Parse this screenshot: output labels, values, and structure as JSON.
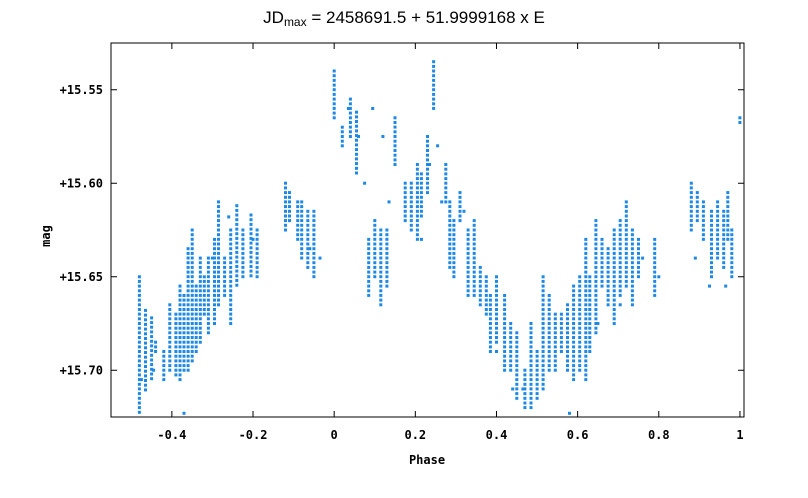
{
  "chart_data": {
    "type": "scatter",
    "title_prefix": "JD",
    "title_sub": "max",
    "title_rest": " = 2458691.5 + 51.9999168 x E",
    "xlabel": "Phase",
    "ylabel": "mag",
    "xlim": [
      -0.55,
      1.01
    ],
    "ylim": [
      15.525,
      15.725
    ],
    "y_inverted": true,
    "grid": false,
    "marker_color": "#1e88e5",
    "x_ticks": [
      {
        "v": -0.4,
        "label": "-0.4"
      },
      {
        "v": -0.2,
        "label": "-0.2"
      },
      {
        "v": 0,
        "label": "0"
      },
      {
        "v": 0.2,
        "label": "0.2"
      },
      {
        "v": 0.4,
        "label": "0.4"
      },
      {
        "v": 0.6,
        "label": "0.6"
      },
      {
        "v": 0.8,
        "label": "0.8"
      },
      {
        "v": 1,
        "label": "1"
      }
    ],
    "y_ticks": [
      {
        "v": 15.55,
        "label": "+15.55"
      },
      {
        "v": 15.6,
        "label": "+15.60"
      },
      {
        "v": 15.65,
        "label": "+15.65"
      },
      {
        "v": 15.7,
        "label": "+15.70"
      }
    ],
    "columns": [
      [
        -0.48,
        15.65,
        15.723
      ],
      [
        -0.465,
        15.668,
        15.712
      ],
      [
        -0.45,
        15.672,
        15.705
      ],
      [
        -0.44,
        15.685,
        15.692
      ],
      [
        -0.42,
        15.69,
        15.705
      ],
      [
        -0.405,
        15.665,
        15.7
      ],
      [
        -0.39,
        15.67,
        15.703
      ],
      [
        -0.38,
        15.655,
        15.705
      ],
      [
        -0.37,
        15.66,
        15.7
      ],
      [
        -0.36,
        15.635,
        15.7
      ],
      [
        -0.35,
        15.625,
        15.695
      ],
      [
        -0.34,
        15.655,
        15.69
      ],
      [
        -0.33,
        15.64,
        15.685
      ],
      [
        -0.32,
        15.65,
        15.67
      ],
      [
        -0.31,
        15.64,
        15.68
      ],
      [
        -0.295,
        15.63,
        15.675
      ],
      [
        -0.285,
        15.61,
        15.665
      ],
      [
        -0.27,
        15.64,
        15.662
      ],
      [
        -0.255,
        15.625,
        15.675
      ],
      [
        -0.24,
        15.612,
        15.655
      ],
      [
        -0.225,
        15.625,
        15.65
      ],
      [
        -0.205,
        15.617,
        15.65
      ],
      [
        -0.19,
        15.625,
        15.652
      ],
      [
        -0.12,
        15.6,
        15.625
      ],
      [
        -0.11,
        15.605,
        15.62
      ],
      [
        -0.09,
        15.61,
        15.63
      ],
      [
        -0.08,
        15.61,
        15.64
      ],
      [
        -0.065,
        15.615,
        15.645
      ],
      [
        -0.05,
        15.615,
        15.65
      ],
      [
        0.0,
        15.54,
        15.565
      ],
      [
        0.02,
        15.57,
        15.58
      ],
      [
        0.04,
        15.555,
        15.575
      ],
      [
        0.055,
        15.562,
        15.595
      ],
      [
        0.085,
        15.63,
        15.66
      ],
      [
        0.1,
        15.62,
        15.65
      ],
      [
        0.115,
        15.625,
        15.665
      ],
      [
        0.13,
        15.625,
        15.655
      ],
      [
        0.15,
        15.565,
        15.59
      ],
      [
        0.175,
        15.6,
        15.62
      ],
      [
        0.19,
        15.6,
        15.625
      ],
      [
        0.205,
        15.59,
        15.63
      ],
      [
        0.215,
        15.595,
        15.618
      ],
      [
        0.23,
        15.575,
        15.605
      ],
      [
        0.245,
        15.535,
        15.56
      ],
      [
        0.275,
        15.59,
        15.61
      ],
      [
        0.285,
        15.61,
        15.645
      ],
      [
        0.295,
        15.62,
        15.65
      ],
      [
        0.31,
        15.605,
        15.62
      ],
      [
        0.33,
        15.625,
        15.66
      ],
      [
        0.345,
        15.62,
        15.66
      ],
      [
        0.36,
        15.645,
        15.665
      ],
      [
        0.375,
        15.65,
        15.67
      ],
      [
        0.385,
        15.66,
        15.69
      ],
      [
        0.4,
        15.65,
        15.685
      ],
      [
        0.42,
        15.66,
        15.7
      ],
      [
        0.435,
        15.675,
        15.7
      ],
      [
        0.45,
        15.68,
        15.715
      ],
      [
        0.47,
        15.7,
        15.722
      ],
      [
        0.485,
        15.675,
        15.72
      ],
      [
        0.5,
        15.69,
        15.715
      ],
      [
        0.515,
        15.65,
        15.712
      ],
      [
        0.53,
        15.66,
        15.702
      ],
      [
        0.545,
        15.67,
        15.7
      ],
      [
        0.56,
        15.67,
        15.692
      ],
      [
        0.575,
        15.665,
        15.7
      ],
      [
        0.59,
        15.655,
        15.705
      ],
      [
        0.605,
        15.65,
        15.7
      ],
      [
        0.62,
        15.63,
        15.705
      ],
      [
        0.63,
        15.65,
        15.69
      ],
      [
        0.645,
        15.62,
        15.68
      ],
      [
        0.66,
        15.63,
        15.655
      ],
      [
        0.675,
        15.635,
        15.665
      ],
      [
        0.69,
        15.625,
        15.675
      ],
      [
        0.705,
        15.62,
        15.66
      ],
      [
        0.72,
        15.61,
        15.655
      ],
      [
        0.735,
        15.625,
        15.665
      ],
      [
        0.75,
        15.63,
        15.65
      ],
      [
        0.79,
        15.63,
        15.66
      ],
      [
        0.88,
        15.6,
        15.625
      ],
      [
        0.895,
        15.605,
        15.62
      ],
      [
        0.91,
        15.61,
        15.63
      ],
      [
        0.93,
        15.615,
        15.65
      ],
      [
        0.945,
        15.61,
        15.64
      ],
      [
        0.96,
        15.615,
        15.645
      ],
      [
        0.97,
        15.605,
        15.63
      ],
      [
        0.98,
        15.625,
        15.65
      ],
      [
        1.0,
        15.565,
        15.568
      ]
    ],
    "scatter_points": [
      [
        -0.445,
        15.7
      ],
      [
        -0.475,
        15.705
      ],
      [
        -0.37,
        15.723
      ],
      [
        -0.3,
        15.64
      ],
      [
        -0.26,
        15.618
      ],
      [
        -0.2,
        15.63
      ],
      [
        -0.06,
        15.635
      ],
      [
        -0.035,
        15.64
      ],
      [
        0.035,
        15.56
      ],
      [
        0.06,
        15.575
      ],
      [
        0.075,
        15.6
      ],
      [
        0.095,
        15.56
      ],
      [
        0.12,
        15.575
      ],
      [
        0.135,
        15.61
      ],
      [
        0.215,
        15.63
      ],
      [
        0.235,
        15.59
      ],
      [
        0.255,
        15.58
      ],
      [
        0.265,
        15.61
      ],
      [
        0.32,
        15.615
      ],
      [
        0.4,
        15.69
      ],
      [
        0.44,
        15.71
      ],
      [
        0.465,
        15.71
      ],
      [
        0.58,
        15.723
      ],
      [
        0.65,
        15.675
      ],
      [
        0.705,
        15.665
      ],
      [
        0.76,
        15.64
      ],
      [
        0.8,
        15.65
      ],
      [
        0.89,
        15.64
      ],
      [
        0.925,
        15.655
      ],
      [
        0.965,
        15.655
      ]
    ]
  }
}
